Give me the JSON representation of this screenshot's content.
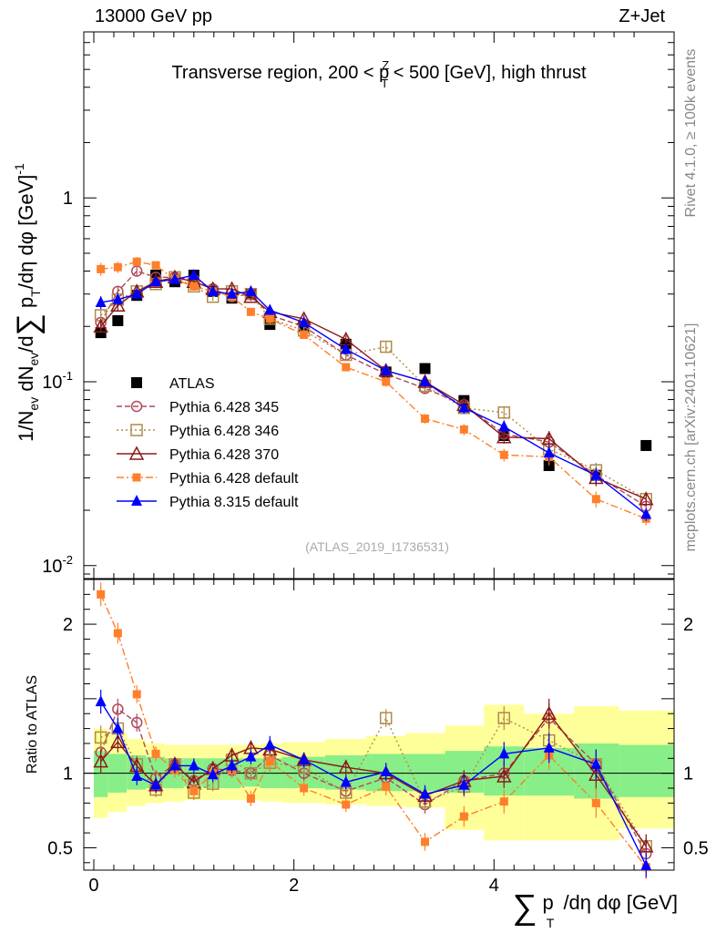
{
  "header": {
    "energy": "13000 GeV pp",
    "process": "Z+Jet",
    "rivet_info": "Rivet 4.1.0, ≥ 100k events",
    "site_info": "mcplots.cern.ch [arXiv:2401.10621]"
  },
  "chart_data": {
    "type": "scatter",
    "title": "Transverse region, 200 < p_T^Z < 500 [GeV], high thrust",
    "analysis_label": "(ATLAS_2019_I1736531)",
    "ylabel_main": "1/N_ev dN_ev/d∑p_T/dη dφ [GeV]^-1",
    "ylabel_ratio": "Ratio to ATLAS",
    "xlabel": "∑p_T/dη dφ [GeV]",
    "xlim": [
      -0.1,
      5.8
    ],
    "ylim_main": [
      0.0085,
      8.0
    ],
    "yscale_main": "log",
    "ylim_ratio": [
      0.35,
      2.3
    ],
    "x_ticks": [
      "0",
      "2",
      "4"
    ],
    "y_ticks_main": [
      "10^-2",
      "10^-1",
      "1"
    ],
    "y_ticks_ratio": [
      "0.5",
      "1",
      "2"
    ],
    "x": [
      0.07,
      0.24,
      0.43,
      0.62,
      0.81,
      1.0,
      1.19,
      1.38,
      1.57,
      1.76,
      2.1,
      2.52,
      2.92,
      3.31,
      3.7,
      4.1,
      4.55,
      5.02,
      5.52
    ],
    "band_edges": [
      0.0,
      0.14,
      0.33,
      0.52,
      0.71,
      0.9,
      1.09,
      1.28,
      1.47,
      1.66,
      1.88,
      2.31,
      2.72,
      3.12,
      3.51,
      3.9,
      4.3,
      4.8,
      5.25,
      5.8
    ],
    "band_inner": [
      [
        0.84,
        1.15
      ],
      [
        0.87,
        1.13
      ],
      [
        0.89,
        1.12
      ],
      [
        0.9,
        1.11
      ],
      [
        0.9,
        1.1
      ],
      [
        0.91,
        1.1
      ],
      [
        0.9,
        1.1
      ],
      [
        0.9,
        1.1
      ],
      [
        0.91,
        1.1
      ],
      [
        0.9,
        1.1
      ],
      [
        0.9,
        1.11
      ],
      [
        0.89,
        1.12
      ],
      [
        0.88,
        1.13
      ],
      [
        0.88,
        1.13
      ],
      [
        0.87,
        1.15
      ],
      [
        0.85,
        1.18
      ],
      [
        0.85,
        1.17
      ],
      [
        0.83,
        1.2
      ],
      [
        0.84,
        1.19
      ]
    ],
    "band_outer": [
      [
        0.7,
        1.3
      ],
      [
        0.74,
        1.27
      ],
      [
        0.78,
        1.23
      ],
      [
        0.8,
        1.2
      ],
      [
        0.81,
        1.19
      ],
      [
        0.82,
        1.19
      ],
      [
        0.82,
        1.19
      ],
      [
        0.82,
        1.19
      ],
      [
        0.82,
        1.19
      ],
      [
        0.81,
        1.2
      ],
      [
        0.8,
        1.21
      ],
      [
        0.79,
        1.23
      ],
      [
        0.78,
        1.25
      ],
      [
        0.77,
        1.27
      ],
      [
        0.62,
        1.32
      ],
      [
        0.55,
        1.46
      ],
      [
        0.55,
        1.4
      ],
      [
        0.55,
        1.45
      ],
      [
        0.63,
        1.42
      ]
    ],
    "series": [
      {
        "name": "ATLAS",
        "color": "#000000",
        "marker": "square-filled",
        "line": "none",
        "values": [
          0.185,
          0.215,
          0.295,
          0.38,
          0.35,
          0.38,
          0.31,
          0.285,
          0.3,
          0.205,
          0.2,
          0.16,
          0.113,
          0.118,
          0.079,
          0.051,
          0.035,
          0.031,
          0.045
        ],
        "ratio": [
          1,
          1,
          1,
          1,
          1,
          1,
          1,
          1,
          1,
          1,
          1,
          1,
          1,
          1,
          1,
          1,
          1,
          1,
          1
        ]
      },
      {
        "name": "Pythia 6.428 345",
        "color": "#b0485a",
        "marker": "circle-open",
        "line": "dashed",
        "values": [
          0.21,
          0.31,
          0.4,
          0.37,
          0.37,
          0.36,
          0.32,
          0.29,
          0.3,
          0.23,
          0.2,
          0.14,
          0.11,
          0.092,
          0.075,
          0.052,
          0.047,
          0.031,
          0.021
        ],
        "ratio": [
          1.14,
          1.43,
          1.34,
          0.97,
          1.06,
          0.95,
          1.03,
          1.02,
          1.0,
          1.12,
          1.0,
          0.88,
          0.97,
          0.79,
          0.95,
          1.0,
          1.37,
          1.06,
          0.46
        ],
        "rerr": [
          0.08,
          0.07,
          0.06,
          0.05,
          0.05,
          0.05,
          0.05,
          0.05,
          0.05,
          0.06,
          0.05,
          0.05,
          0.06,
          0.06,
          0.07,
          0.08,
          0.1,
          0.1,
          0.08
        ]
      },
      {
        "name": "Pythia 6.428 346",
        "color": "#b08a4a",
        "marker": "square-open",
        "line": "dotted",
        "values": [
          0.23,
          0.28,
          0.31,
          0.34,
          0.37,
          0.33,
          0.29,
          0.31,
          0.3,
          0.22,
          0.19,
          0.14,
          0.155,
          0.095,
          0.072,
          0.068,
          0.043,
          0.033,
          0.023
        ],
        "ratio": [
          1.24,
          1.3,
          1.06,
          0.89,
          1.06,
          0.87,
          0.93,
          1.09,
          1.0,
          1.07,
          1.04,
          0.87,
          1.37,
          0.81,
          0.91,
          1.37,
          1.22,
          1.06,
          0.51
        ],
        "rerr": [
          0.08,
          0.07,
          0.06,
          0.05,
          0.05,
          0.05,
          0.05,
          0.05,
          0.05,
          0.06,
          0.05,
          0.05,
          0.06,
          0.06,
          0.07,
          0.08,
          0.1,
          0.1,
          0.08
        ]
      },
      {
        "name": "Pythia 6.428 370",
        "color": "#8b1a1a",
        "marker": "triangle-open",
        "line": "solid",
        "values": [
          0.2,
          0.26,
          0.31,
          0.35,
          0.37,
          0.35,
          0.32,
          0.32,
          0.29,
          0.24,
          0.22,
          0.17,
          0.115,
          0.1,
          0.075,
          0.05,
          0.049,
          0.03,
          0.023
        ],
        "ratio": [
          1.08,
          1.21,
          1.05,
          0.92,
          1.06,
          0.94,
          1.03,
          1.12,
          1.17,
          1.16,
          1.09,
          1.04,
          1.0,
          0.85,
          0.95,
          0.98,
          1.4,
          0.99,
          0.51
        ],
        "rerr": [
          0.08,
          0.07,
          0.06,
          0.05,
          0.05,
          0.05,
          0.05,
          0.05,
          0.05,
          0.06,
          0.05,
          0.05,
          0.06,
          0.06,
          0.07,
          0.08,
          0.1,
          0.1,
          0.08
        ]
      },
      {
        "name": "Pythia 6.428 default",
        "color": "#ff7f2a",
        "marker": "square-filled-small",
        "line": "dashdot",
        "values": [
          0.41,
          0.42,
          0.45,
          0.43,
          0.36,
          0.33,
          0.31,
          0.29,
          0.24,
          0.22,
          0.18,
          0.12,
          0.1,
          0.063,
          0.055,
          0.04,
          0.039,
          0.023,
          0.018
        ],
        "ratio": [
          2.2,
          1.94,
          1.53,
          1.13,
          1.02,
          0.88,
          1.0,
          1.02,
          0.83,
          1.08,
          0.9,
          0.79,
          0.91,
          0.54,
          0.71,
          0.81,
          1.12,
          0.8,
          0.37
        ],
        "rerr": [
          0.08,
          0.07,
          0.06,
          0.05,
          0.05,
          0.05,
          0.05,
          0.05,
          0.05,
          0.06,
          0.05,
          0.05,
          0.06,
          0.06,
          0.07,
          0.08,
          0.1,
          0.1,
          0.08
        ]
      },
      {
        "name": "Pythia 8.315 default",
        "color": "#0000ff",
        "marker": "triangle-filled",
        "line": "solid",
        "values": [
          0.27,
          0.28,
          0.3,
          0.35,
          0.36,
          0.38,
          0.31,
          0.3,
          0.31,
          0.245,
          0.21,
          0.15,
          0.115,
          0.1,
          0.072,
          0.057,
          0.041,
          0.031,
          0.019
        ],
        "ratio": [
          1.48,
          1.3,
          0.98,
          0.92,
          1.05,
          1.05,
          0.99,
          1.05,
          1.11,
          1.19,
          1.09,
          0.94,
          1.01,
          0.86,
          0.92,
          1.13,
          1.17,
          1.06,
          0.38
        ],
        "rerr": [
          0.08,
          0.07,
          0.06,
          0.05,
          0.05,
          0.05,
          0.05,
          0.05,
          0.05,
          0.06,
          0.05,
          0.05,
          0.06,
          0.06,
          0.07,
          0.08,
          0.1,
          0.1,
          0.08
        ]
      }
    ]
  }
}
